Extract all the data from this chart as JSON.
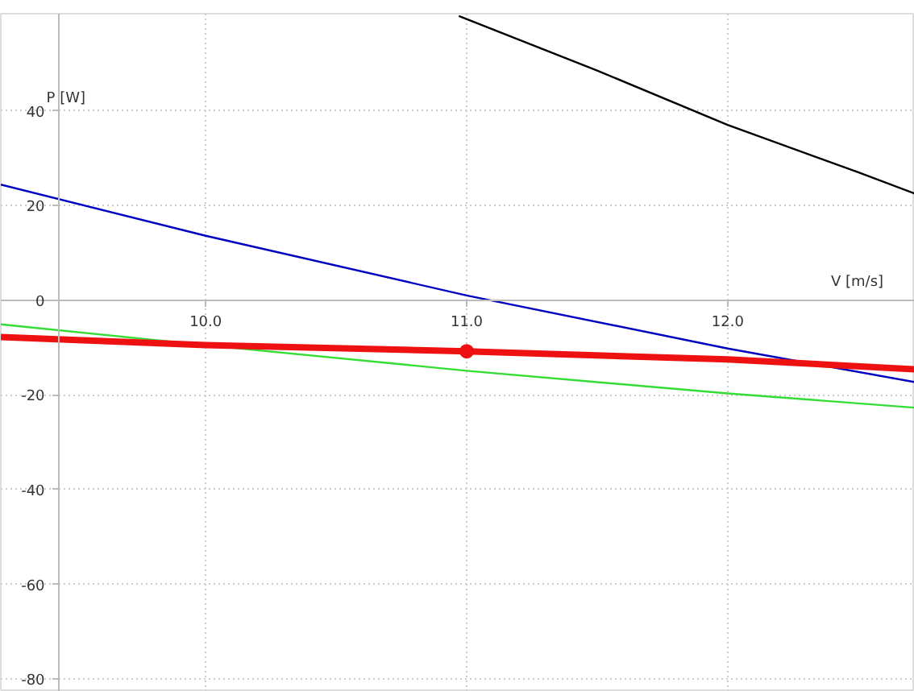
{
  "chart_data": {
    "type": "line",
    "xlabel": "V [m/s]",
    "ylabel": "P [W]",
    "xlim": [
      9.215,
      12.717
    ],
    "ylim": [
      -82.7,
      60.5
    ],
    "xticks": [
      {
        "value": 10,
        "label": "10.0"
      },
      {
        "value": 11,
        "label": "11.0"
      },
      {
        "value": 12,
        "label": "12.0"
      }
    ],
    "yticks": [
      -80,
      -60,
      -40,
      -20,
      0,
      20,
      40
    ],
    "grid": true,
    "series": [
      {
        "color": "#000000",
        "x": [
          10.97,
          11.5,
          12.0,
          12.5,
          12.717
        ],
        "values": [
          60,
          48.5,
          37,
          27,
          22.5
        ]
      },
      {
        "color": "#0000c0",
        "x": [
          9.215,
          10.0,
          11.0,
          12.0,
          12.717
        ],
        "values": [
          24.4,
          13.6,
          1,
          -10.2,
          -17.3
        ]
      },
      {
        "color": "#33dd33",
        "x": [
          9.215,
          10.0,
          11.0,
          12.0,
          12.717
        ],
        "values": [
          -5.1,
          -9.5,
          -14.9,
          -19.7,
          -22.7
        ]
      },
      {
        "color": "#ee1111",
        "x": [
          9.215,
          10.0,
          11.0,
          12.0,
          12.717
        ],
        "values": [
          -7.8,
          -9.5,
          -10.8,
          -12.5,
          -14.6
        ]
      },
      {
        "type": "scatter",
        "marker": "circle",
        "color": "#ee1111",
        "x": [
          11.0
        ],
        "values": [
          -10.8
        ]
      }
    ]
  }
}
